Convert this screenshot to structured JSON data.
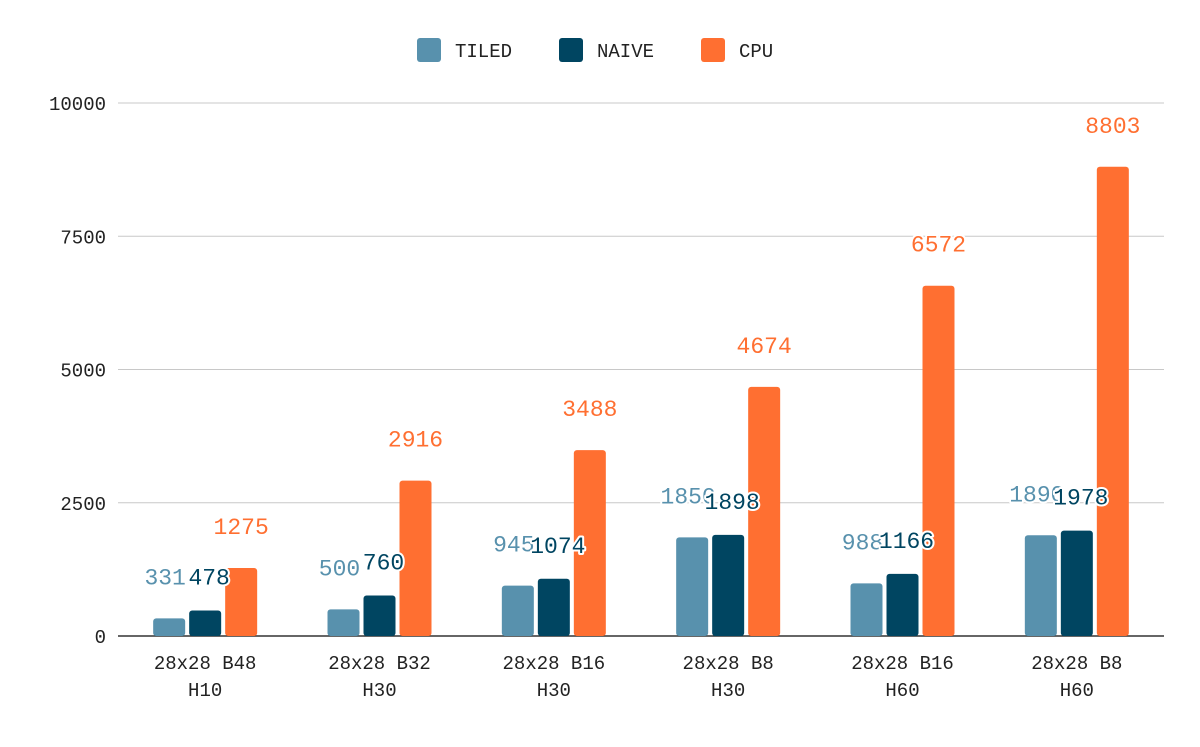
{
  "chart_data": {
    "type": "bar",
    "title": "",
    "xlabel": "",
    "ylabel": "",
    "categories": [
      [
        "28x28 B48",
        "H10"
      ],
      [
        "28x28 B32",
        "H30"
      ],
      [
        "28x28 B16",
        "H30"
      ],
      [
        "28x28 B8",
        "H30"
      ],
      [
        "28x28 B16",
        "H60"
      ],
      [
        "28x28 B8",
        "H60"
      ]
    ],
    "series": [
      {
        "name": "TILED",
        "color": "#5891ad",
        "values": [
          331,
          500,
          945,
          1850,
          988,
          1890
        ]
      },
      {
        "name": "NAIVE",
        "color": "#004561",
        "values": [
          478,
          760,
          1074,
          1898,
          1166,
          1978
        ]
      },
      {
        "name": "CPU",
        "color": "#ff6f31",
        "values": [
          1275,
          2916,
          3488,
          4674,
          6572,
          8803
        ]
      }
    ],
    "ylim": [
      0,
      10000
    ],
    "yticks": [
      0,
      2500,
      5000,
      7500,
      10000
    ],
    "grid": true,
    "legend_position": "top-center"
  }
}
